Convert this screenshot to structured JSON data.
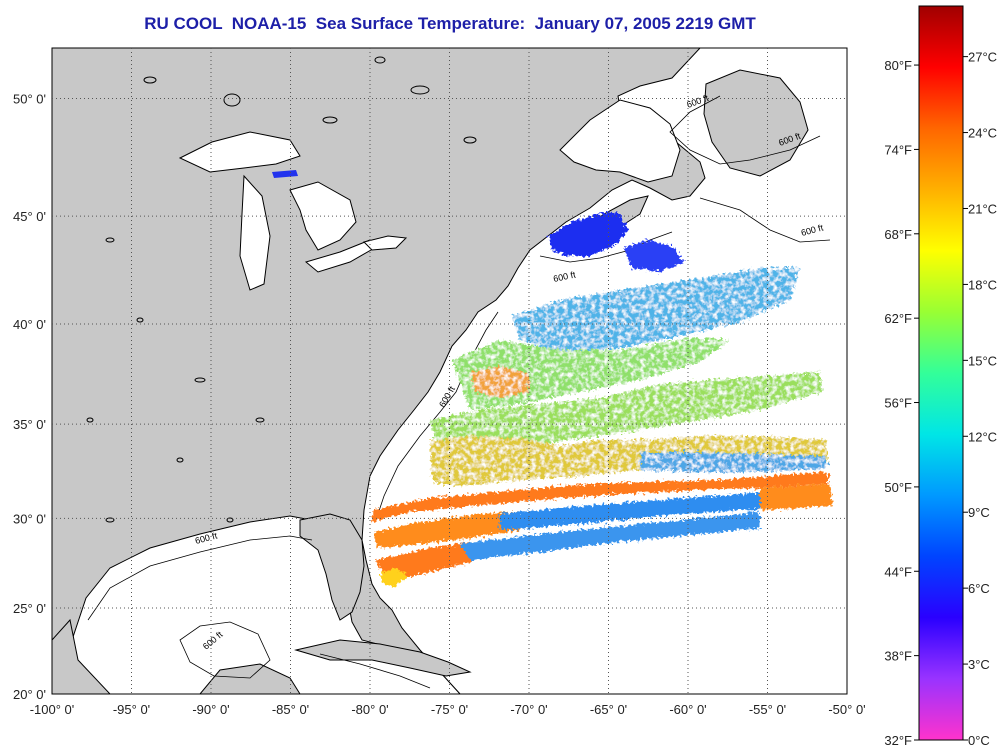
{
  "title": "RU COOL  NOAA-15  Sea Surface Temperature:  January 07, 2005 2219 GMT",
  "map": {
    "extent": {
      "lon": [
        -100,
        -50
      ],
      "lat": [
        20,
        52
      ]
    },
    "lat_ticks": [
      {
        "value": 50,
        "label": "50° 0'"
      },
      {
        "value": 45,
        "label": "45° 0'"
      },
      {
        "value": 40,
        "label": "40° 0'"
      },
      {
        "value": 35,
        "label": "35° 0'"
      },
      {
        "value": 30,
        "label": "30° 0'"
      },
      {
        "value": 25,
        "label": "25° 0'"
      },
      {
        "value": 20,
        "label": "20° 0'"
      }
    ],
    "lon_ticks": [
      {
        "value": -100,
        "label": "-100° 0'"
      },
      {
        "value": -95,
        "label": "-95° 0'"
      },
      {
        "value": -90,
        "label": "-90° 0'"
      },
      {
        "value": -85,
        "label": "-85° 0'"
      },
      {
        "value": -80,
        "label": "-80° 0'"
      },
      {
        "value": -75,
        "label": "-75° 0'"
      },
      {
        "value": -70,
        "label": "-70° 0'"
      },
      {
        "value": -65,
        "label": "-65° 0'"
      },
      {
        "value": -60,
        "label": "-60° 0'"
      },
      {
        "value": -55,
        "label": "-55° 0'"
      },
      {
        "value": -50,
        "label": "-50° 0'"
      }
    ],
    "contour_labels": [
      "600 ft",
      "600 ft",
      "600 ft",
      "600 ft",
      "600 ft",
      "600 ft",
      "600 ft"
    ],
    "colors": {
      "land": "#c8c8c8",
      "ocean_no_data": "#ffffff",
      "coast": "#000000",
      "grid": "#555555"
    }
  },
  "colorbar": {
    "range_c": [
      0,
      29
    ],
    "celsius_ticks": [
      {
        "value": 27,
        "label": "27°C"
      },
      {
        "value": 24,
        "label": "24°C"
      },
      {
        "value": 21,
        "label": "21°C"
      },
      {
        "value": 18,
        "label": "18°C"
      },
      {
        "value": 15,
        "label": "15°C"
      },
      {
        "value": 12,
        "label": "12°C"
      },
      {
        "value": 9,
        "label": "9°C"
      },
      {
        "value": 6,
        "label": "6°C"
      },
      {
        "value": 3,
        "label": "3°C"
      },
      {
        "value": 0,
        "label": "0°C"
      }
    ],
    "fahrenheit_ticks": [
      {
        "value": 80,
        "label": "80°F"
      },
      {
        "value": 74,
        "label": "74°F"
      },
      {
        "value": 68,
        "label": "68°F"
      },
      {
        "value": 62,
        "label": "62°F"
      },
      {
        "value": 56,
        "label": "56°F"
      },
      {
        "value": 50,
        "label": "50°F"
      },
      {
        "value": 44,
        "label": "44°F"
      },
      {
        "value": 38,
        "label": "38°F"
      },
      {
        "value": 32,
        "label": "32°F"
      }
    ],
    "gradient": [
      "#ff33cc",
      "#9933ff",
      "#2a00ff",
      "#0044ff",
      "#0099ff",
      "#00e6e6",
      "#33ff99",
      "#99ff33",
      "#ffff00",
      "#ffb000",
      "#ff6600",
      "#ff0000",
      "#a00000"
    ]
  }
}
